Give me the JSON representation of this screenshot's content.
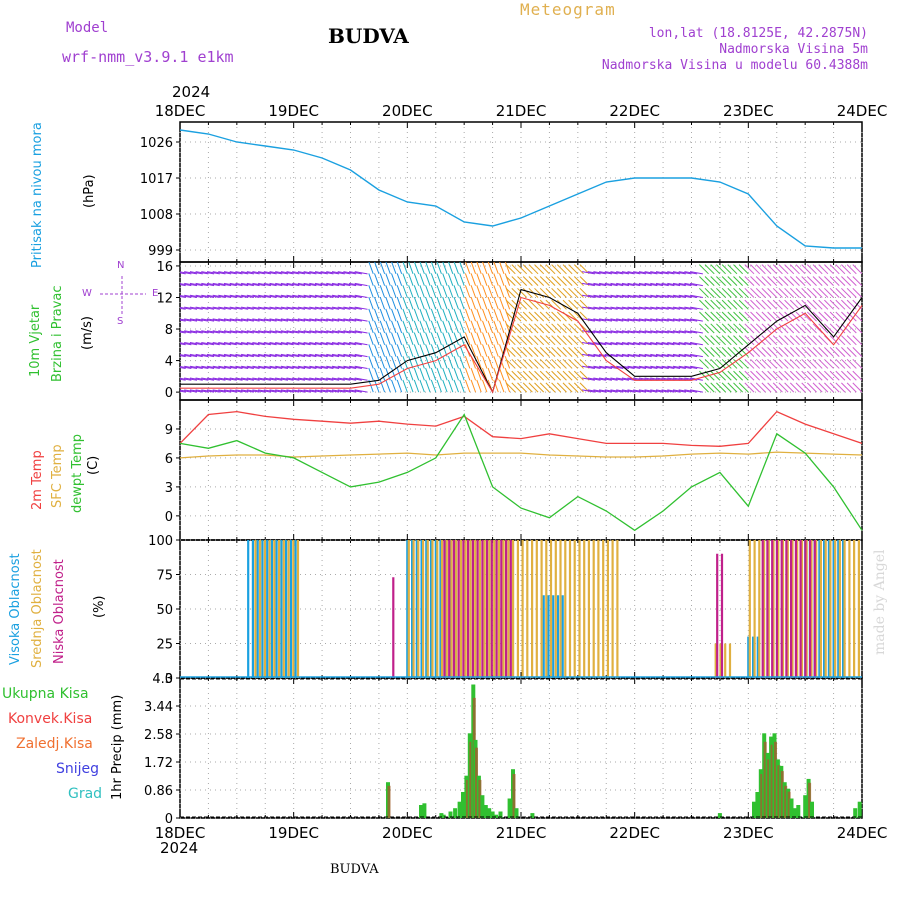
{
  "header": {
    "model_label": "Model",
    "model_name": "wrf-nmm_v3.9.1 e1km",
    "station": "BUDVA",
    "meteogram_label": "Meteogram",
    "lonlat": "lon,lat (18.8125E, 42.2875N)",
    "elevation": "Nadmorska Visina 5m",
    "model_elevation": "Nadmorska Visina u modelu 60.4388m",
    "year": "2024",
    "bottom_station": "BUDVA",
    "watermark": "made by Angel"
  },
  "colors": {
    "pressure": "#1aa0e0",
    "temp2m": "#f04040",
    "sfc": "#e0b040",
    "dew": "#30c030",
    "high_cloud": "#1aa0e0",
    "mid_cloud": "#e0b040",
    "low_cloud": "#c0208a",
    "total_precip": "#30c030",
    "convective": "#f04040",
    "freezing": "#f07030",
    "snow": "#4040e0",
    "hail": "#30c0c0"
  },
  "chart_data": [
    {
      "type": "line",
      "panel": "pressure",
      "ylabel": [
        "Pritisak na nivou mora",
        "(hPa)"
      ],
      "ylim": [
        996,
        1031
      ],
      "yticks": [
        999,
        1008,
        1017,
        1026
      ],
      "xticks": [
        "18DEC",
        "19DEC",
        "20DEC",
        "21DEC",
        "22DEC",
        "23DEC",
        "24DEC"
      ],
      "x_days": [
        0,
        0.25,
        0.5,
        0.75,
        1,
        1.25,
        1.5,
        1.75,
        2,
        2.25,
        2.5,
        2.75,
        3,
        3.25,
        3.5,
        3.75,
        4,
        4.25,
        4.5,
        4.75,
        5,
        5.25,
        5.5,
        5.75,
        6
      ],
      "series": [
        {
          "values": [
            1029,
            1028,
            1026,
            1025,
            1024,
            1022,
            1019,
            1014,
            1011,
            1010,
            1006,
            1005,
            1007,
            1010,
            1013,
            1016,
            1017,
            1017,
            1017,
            1016,
            1013,
            1005,
            1000,
            999.5,
            999.5
          ]
        }
      ]
    },
    {
      "type": "line",
      "panel": "wind",
      "ylabel": [
        "10m Vjetar",
        "Brzina i Pravac",
        "(m/s)"
      ],
      "compass": [
        "N",
        "E",
        "S",
        "W"
      ],
      "ylim": [
        -1,
        16.5
      ],
      "yticks": [
        0,
        4,
        8,
        12,
        16
      ],
      "x_days": [
        0,
        0.25,
        0.5,
        0.75,
        1,
        1.25,
        1.5,
        1.75,
        2,
        2.25,
        2.5,
        2.75,
        3,
        3.25,
        3.5,
        3.75,
        4,
        4.25,
        4.5,
        4.75,
        5,
        5.25,
        5.5,
        5.75,
        6
      ],
      "series": [
        {
          "values": [
            1,
            1,
            1,
            1,
            1,
            1,
            1,
            1.5,
            4,
            5,
            7,
            0,
            13,
            12,
            10,
            5,
            2,
            2,
            2,
            3,
            6,
            9,
            11,
            7,
            12
          ]
        },
        {
          "values": [
            0.5,
            0.5,
            0.5,
            0.5,
            0.5,
            0.5,
            0.5,
            1,
            3,
            4,
            6,
            0,
            12,
            11,
            9,
            4,
            1.5,
            1.5,
            1.5,
            2.5,
            5,
            8,
            10,
            6,
            11
          ]
        }
      ]
    },
    {
      "type": "line",
      "panel": "temperature",
      "ylabel": [
        "2m Temp",
        "SFC Temp",
        "dewpt Temp",
        "(C)"
      ],
      "ylim": [
        -2.5,
        12
      ],
      "yticks": [
        0,
        3,
        6,
        9
      ],
      "x_days": [
        0,
        0.25,
        0.5,
        0.75,
        1,
        1.25,
        1.5,
        1.75,
        2,
        2.25,
        2.5,
        2.75,
        3,
        3.25,
        3.5,
        3.75,
        4,
        4.25,
        4.5,
        4.75,
        5,
        5.25,
        5.5,
        5.75,
        6
      ],
      "series": [
        {
          "values": [
            7.5,
            10.5,
            10.8,
            10.3,
            10,
            9.8,
            9.6,
            9.8,
            9.5,
            9.3,
            10.3,
            8.2,
            8,
            8.5,
            8,
            7.5,
            7.5,
            7.5,
            7.3,
            7.2,
            7.5,
            10.8,
            9.5,
            8.5,
            7.5
          ]
        },
        {
          "values": [
            6,
            6.2,
            6.3,
            6.3,
            6.1,
            6.2,
            6.3,
            6.4,
            6.5,
            6.3,
            6.5,
            6.5,
            6.5,
            6.3,
            6.2,
            6.1,
            6.1,
            6.2,
            6.4,
            6.5,
            6.4,
            6.6,
            6.5,
            6.4,
            6.3
          ]
        },
        {
          "values": [
            7.5,
            7,
            7.8,
            6.5,
            6,
            4.5,
            3,
            3.5,
            4.5,
            6,
            10.5,
            3,
            0.8,
            -0.2,
            2,
            0.5,
            -1.5,
            0.5,
            3,
            4.5,
            1,
            8.5,
            6.5,
            3,
            -1.5
          ]
        }
      ]
    },
    {
      "type": "bar",
      "panel": "cloud",
      "ylabel": [
        "Visoka Oblacnost",
        "Srednja Oblacnost",
        "Niska Oblacnost",
        "(%)"
      ],
      "ylim": [
        0,
        100
      ],
      "yticks": [
        0,
        25,
        50,
        75,
        100
      ],
      "step_days": 0.0417,
      "series": [
        {
          "name": "Visoka Oblacnost",
          "blocks": [
            [
              0.6,
              1.05,
              100
            ],
            [
              2.0,
              2.45,
              100
            ],
            [
              3.2,
              3.4,
              60
            ],
            [
              5.0,
              5.1,
              30
            ],
            [
              5.5,
              5.85,
              100
            ]
          ]
        },
        {
          "name": "Srednja Oblacnost",
          "blocks": [
            [
              0.65,
              1.05,
              100
            ],
            [
              2.0,
              3.85,
              100
            ],
            [
              4.7,
              4.85,
              25
            ],
            [
              5.0,
              6.0,
              100
            ]
          ]
        },
        {
          "name": "Niska Oblacnost",
          "blocks": [
            [
              1.85,
              1.87,
              73
            ],
            [
              2.3,
              2.9,
              100
            ],
            [
              4.7,
              4.75,
              90
            ],
            [
              5.1,
              5.6,
              100
            ]
          ]
        }
      ]
    },
    {
      "type": "bar",
      "panel": "precipitation",
      "ylabel": [
        "1hr Precip (mm)"
      ],
      "legend": [
        "Ukupna Kisa",
        "Konvek.Kisa",
        "Zaledj.Kisa",
        "Snijeg",
        "Grad"
      ],
      "ylim": [
        0,
        4.3
      ],
      "yticks": [
        0,
        0.86,
        1.72,
        2.58,
        3.44,
        4.3
      ],
      "ytick_labels": [
        "0",
        "0.86",
        "1.72",
        "2.58",
        "3.44",
        "4.3"
      ],
      "x_days": [
        1.83,
        2.12,
        2.15,
        2.3,
        2.32,
        2.38,
        2.42,
        2.46,
        2.49,
        2.52,
        2.55,
        2.58,
        2.6,
        2.63,
        2.66,
        2.69,
        2.72,
        2.75,
        2.78,
        2.82,
        2.9,
        2.93,
        2.96,
        3.1,
        4.75,
        5.05,
        5.08,
        5.11,
        5.14,
        5.17,
        5.2,
        5.23,
        5.26,
        5.29,
        5.32,
        5.35,
        5.38,
        5.41,
        5.44,
        5.5,
        5.53,
        5.56,
        5.94,
        5.98
      ],
      "series": [
        {
          "name": "Ukupna Kisa",
          "values": [
            1.1,
            0.4,
            0.45,
            0.15,
            0.1,
            0.2,
            0.3,
            0.5,
            0.8,
            1.3,
            2.6,
            4.1,
            2.4,
            1.3,
            0.7,
            0.4,
            0.3,
            0.2,
            0.1,
            0.2,
            0.6,
            1.5,
            0.3,
            0.15,
            0.15,
            0.5,
            0.8,
            1.5,
            2.6,
            2.0,
            2.5,
            2.6,
            1.8,
            1.6,
            1.1,
            0.9,
            0.6,
            0.3,
            0.4,
            0.7,
            1.2,
            0.5,
            0.3,
            0.5
          ]
        }
      ]
    }
  ]
}
